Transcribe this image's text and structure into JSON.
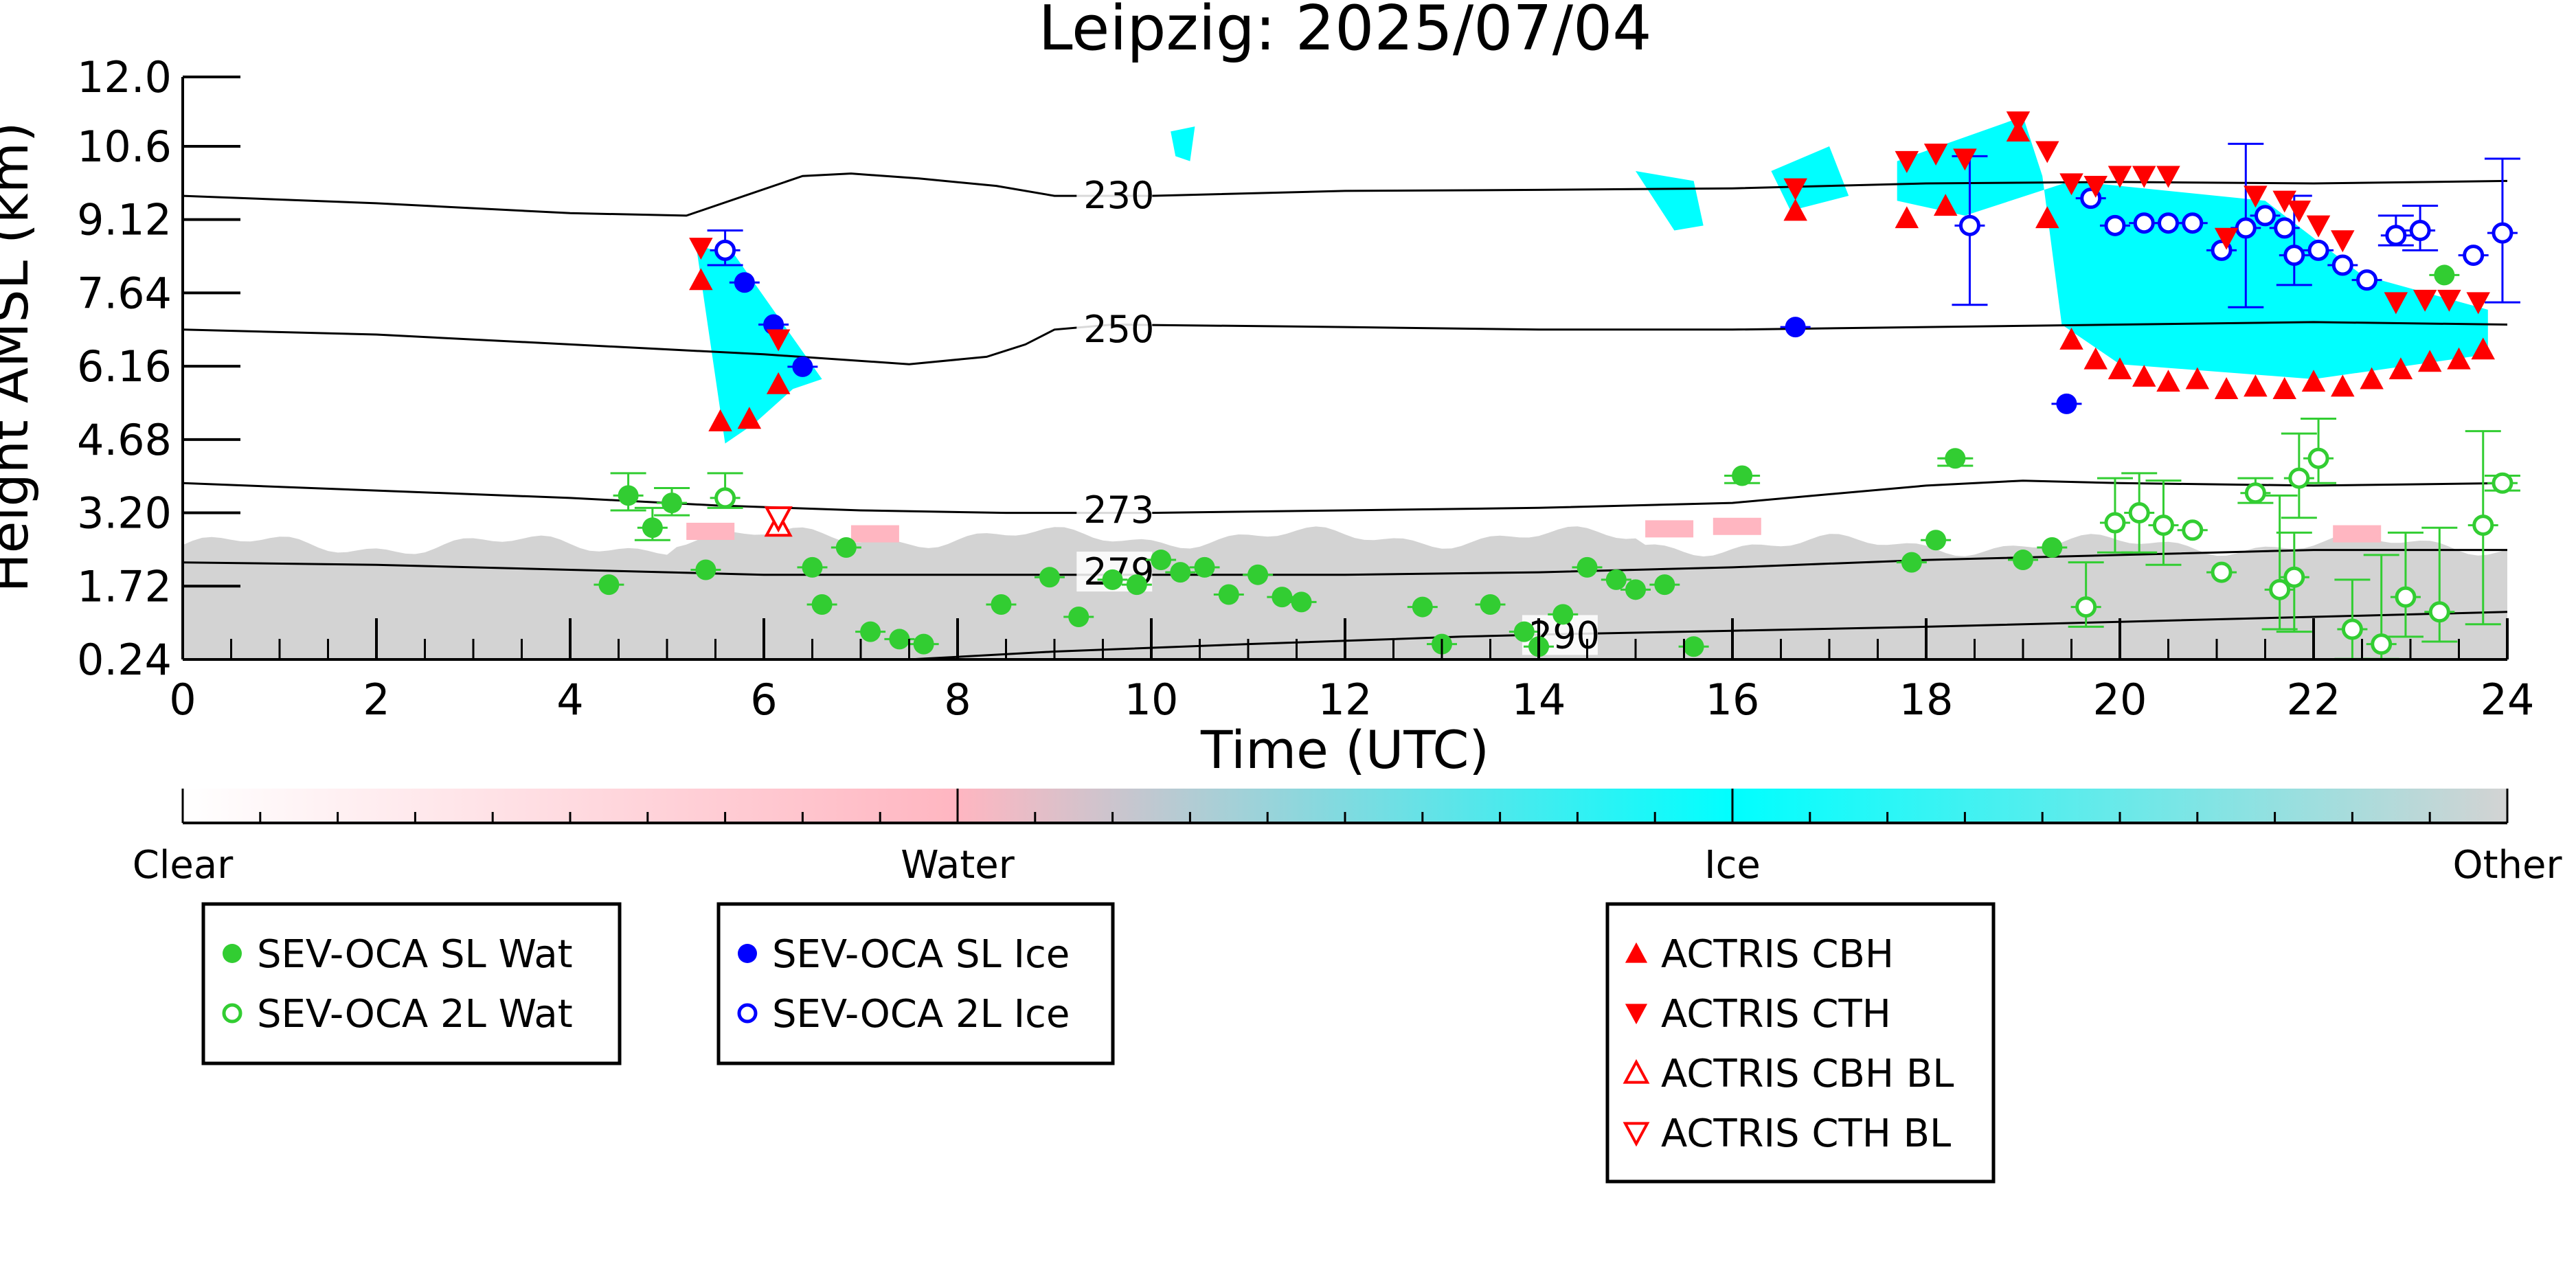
{
  "chart_data": {
    "type": "scatter",
    "title": "Leipzig: 2025/07/04",
    "xlabel": "Time (UTC)",
    "ylabel": "Height AMSL (km)",
    "xlim": [
      0,
      24
    ],
    "ylim": [
      0.24,
      12.0
    ],
    "x_ticks": [
      "0",
      "2",
      "4",
      "6",
      "8",
      "10",
      "12",
      "14",
      "16",
      "18",
      "20",
      "22",
      "24"
    ],
    "y_ticks": [
      "0.24",
      "1.72",
      "3.20",
      "4.68",
      "6.16",
      "7.64",
      "9.12",
      "10.6",
      "12.0"
    ],
    "colorbar": {
      "labels": [
        "Clear",
        "Water",
        "Ice",
        "Other"
      ],
      "colors": [
        "#ffffff",
        "#ffb6c1",
        "#00ffff",
        "#d3d3d3"
      ]
    },
    "temperature_contours": [
      {
        "label": "230",
        "label_at": [
          9.3,
          9.6
        ],
        "points": [
          [
            0,
            9.6
          ],
          [
            2,
            9.45
          ],
          [
            4,
            9.25
          ],
          [
            5.2,
            9.2
          ],
          [
            5.8,
            9.6
          ],
          [
            6.4,
            10.0
          ],
          [
            6.9,
            10.05
          ],
          [
            7.6,
            9.95
          ],
          [
            8.4,
            9.8
          ],
          [
            9.0,
            9.6
          ],
          [
            10,
            9.6
          ],
          [
            12,
            9.7
          ],
          [
            14,
            9.72
          ],
          [
            16,
            9.75
          ],
          [
            18,
            9.85
          ],
          [
            20,
            9.88
          ],
          [
            22,
            9.85
          ],
          [
            24,
            9.9
          ]
        ]
      },
      {
        "label": "250",
        "label_at": [
          9.3,
          6.9
        ],
        "points": [
          [
            0,
            6.9
          ],
          [
            2,
            6.8
          ],
          [
            4,
            6.6
          ],
          [
            6,
            6.4
          ],
          [
            7.5,
            6.2
          ],
          [
            8.3,
            6.35
          ],
          [
            8.7,
            6.6
          ],
          [
            9.0,
            6.9
          ],
          [
            9.6,
            7.0
          ],
          [
            12,
            6.95
          ],
          [
            14,
            6.9
          ],
          [
            16,
            6.9
          ],
          [
            18,
            6.95
          ],
          [
            20,
            7.0
          ],
          [
            22,
            7.05
          ],
          [
            24,
            7.0
          ]
        ]
      },
      {
        "label": "273",
        "label_at": [
          9.3,
          3.25
        ],
        "points": [
          [
            0,
            3.8
          ],
          [
            2,
            3.65
          ],
          [
            4,
            3.5
          ],
          [
            5.5,
            3.35
          ],
          [
            7.0,
            3.25
          ],
          [
            8.5,
            3.2
          ],
          [
            10,
            3.2
          ],
          [
            12,
            3.25
          ],
          [
            14,
            3.3
          ],
          [
            16,
            3.4
          ],
          [
            18,
            3.75
          ],
          [
            19,
            3.85
          ],
          [
            20,
            3.8
          ],
          [
            22,
            3.75
          ],
          [
            24,
            3.8
          ]
        ]
      },
      {
        "label": "279",
        "label_at": [
          9.3,
          2.0
        ],
        "points": [
          [
            0,
            2.2
          ],
          [
            2,
            2.15
          ],
          [
            4,
            2.05
          ],
          [
            6,
            1.95
          ],
          [
            8,
            1.95
          ],
          [
            10,
            1.95
          ],
          [
            12,
            1.95
          ],
          [
            14,
            2.0
          ],
          [
            16,
            2.1
          ],
          [
            18,
            2.25
          ],
          [
            20,
            2.35
          ],
          [
            22,
            2.45
          ],
          [
            24,
            2.45
          ]
        ]
      },
      {
        "label": "290",
        "label_at": [
          13.9,
          0.72
        ],
        "points": [
          [
            7.5,
            0.24
          ],
          [
            9,
            0.4
          ],
          [
            11,
            0.55
          ],
          [
            12.5,
            0.65
          ],
          [
            13.2,
            0.7
          ],
          [
            14.2,
            0.75
          ],
          [
            16,
            0.82
          ],
          [
            18,
            0.9
          ],
          [
            20,
            1.0
          ],
          [
            22,
            1.1
          ],
          [
            24,
            1.2
          ]
        ]
      }
    ],
    "series": [
      {
        "name": "SEV-OCA SL Wat",
        "color": "#32cd32",
        "marker": "circle-filled",
        "points": [
          [
            4.4,
            1.75
          ],
          [
            4.6,
            3.55
          ],
          [
            4.85,
            2.9
          ],
          [
            5.05,
            3.4
          ],
          [
            5.4,
            2.05
          ],
          [
            6.5,
            2.1
          ],
          [
            6.6,
            1.35
          ],
          [
            6.85,
            2.5
          ],
          [
            7.1,
            0.8
          ],
          [
            7.4,
            0.65
          ],
          [
            7.65,
            0.55
          ],
          [
            8.45,
            1.35
          ],
          [
            8.95,
            1.9
          ],
          [
            9.25,
            1.1
          ],
          [
            9.6,
            1.85
          ],
          [
            9.85,
            1.75
          ],
          [
            10.1,
            2.25
          ],
          [
            10.3,
            2.0
          ],
          [
            10.55,
            2.1
          ],
          [
            10.8,
            1.55
          ],
          [
            11.1,
            1.95
          ],
          [
            11.35,
            1.5
          ],
          [
            11.55,
            1.4
          ],
          [
            12.8,
            1.3
          ],
          [
            13.0,
            0.55
          ],
          [
            13.5,
            1.35
          ],
          [
            13.85,
            0.8
          ],
          [
            14.0,
            0.5
          ],
          [
            14.25,
            1.15
          ],
          [
            14.5,
            2.1
          ],
          [
            14.8,
            1.85
          ],
          [
            15.0,
            1.65
          ],
          [
            15.3,
            1.75
          ],
          [
            15.6,
            0.5
          ],
          [
            16.1,
            3.95
          ],
          [
            17.85,
            2.2
          ],
          [
            18.1,
            2.65
          ],
          [
            18.3,
            4.3
          ],
          [
            19.0,
            2.25
          ],
          [
            19.3,
            2.5
          ],
          [
            23.35,
            8.0
          ]
        ]
      },
      {
        "name": "SEV-OCA 2L Wat",
        "color": "#32cd32",
        "marker": "circle-open",
        "points": [
          [
            5.6,
            3.5
          ],
          [
            19.65,
            1.3
          ],
          [
            19.95,
            3.0
          ],
          [
            20.2,
            3.2
          ],
          [
            20.45,
            2.95
          ],
          [
            20.75,
            2.85
          ],
          [
            21.05,
            2.0
          ],
          [
            21.4,
            3.6
          ],
          [
            21.65,
            1.65
          ],
          [
            21.8,
            1.9
          ],
          [
            21.85,
            3.9
          ],
          [
            22.05,
            4.3
          ],
          [
            22.4,
            0.85
          ],
          [
            22.7,
            0.55
          ],
          [
            22.95,
            1.5
          ],
          [
            23.3,
            1.2
          ],
          [
            23.75,
            2.95
          ],
          [
            23.95,
            3.8
          ]
        ]
      },
      {
        "name": "SEV-OCA SL Ice",
        "color": "#0000ff",
        "marker": "circle-filled",
        "points": [
          [
            5.8,
            7.85
          ],
          [
            6.1,
            7.0
          ],
          [
            6.4,
            6.15
          ],
          [
            16.65,
            6.95
          ],
          [
            19.45,
            5.4
          ]
        ]
      },
      {
        "name": "SEV-OCA 2L Ice",
        "color": "#0000ff",
        "marker": "circle-open",
        "points": [
          [
            5.6,
            8.5
          ],
          [
            18.45,
            9.0
          ],
          [
            19.7,
            9.55
          ],
          [
            19.95,
            9.0
          ],
          [
            20.25,
            9.05
          ],
          [
            20.5,
            9.05
          ],
          [
            20.75,
            9.05
          ],
          [
            21.05,
            8.5
          ],
          [
            21.3,
            8.95
          ],
          [
            21.5,
            9.2
          ],
          [
            21.7,
            8.95
          ],
          [
            21.8,
            8.4
          ],
          [
            22.05,
            8.5
          ],
          [
            22.3,
            8.2
          ],
          [
            22.55,
            7.9
          ],
          [
            22.85,
            8.8
          ],
          [
            23.1,
            8.9
          ],
          [
            23.65,
            8.4
          ],
          [
            23.95,
            8.85
          ]
        ]
      },
      {
        "name": "ACTRIS CBH",
        "color": "#ff0000",
        "marker": "triangle-up-filled",
        "points": [
          [
            5.35,
            7.9
          ],
          [
            5.55,
            5.05
          ],
          [
            5.85,
            5.1
          ],
          [
            6.15,
            5.8
          ],
          [
            16.65,
            9.3
          ],
          [
            17.8,
            9.15
          ],
          [
            18.2,
            9.4
          ],
          [
            18.95,
            10.9
          ],
          [
            19.25,
            9.15
          ],
          [
            19.5,
            6.7
          ],
          [
            19.75,
            6.3
          ],
          [
            20.0,
            6.1
          ],
          [
            20.25,
            5.95
          ],
          [
            20.5,
            5.85
          ],
          [
            20.8,
            5.9
          ],
          [
            21.1,
            5.7
          ],
          [
            21.4,
            5.75
          ],
          [
            21.7,
            5.7
          ],
          [
            22.0,
            5.85
          ],
          [
            22.3,
            5.75
          ],
          [
            22.6,
            5.9
          ],
          [
            22.9,
            6.1
          ],
          [
            23.2,
            6.25
          ],
          [
            23.5,
            6.3
          ],
          [
            23.75,
            6.5
          ]
        ]
      },
      {
        "name": "ACTRIS CTH",
        "color": "#ff0000",
        "marker": "triangle-down-filled",
        "points": [
          [
            5.35,
            8.55
          ],
          [
            6.15,
            6.7
          ],
          [
            16.65,
            9.75
          ],
          [
            17.8,
            10.3
          ],
          [
            18.1,
            10.45
          ],
          [
            18.4,
            10.35
          ],
          [
            18.95,
            11.1
          ],
          [
            19.25,
            10.5
          ],
          [
            19.5,
            9.85
          ],
          [
            19.75,
            9.8
          ],
          [
            20.0,
            10.0
          ],
          [
            20.25,
            10.0
          ],
          [
            20.5,
            10.0
          ],
          [
            21.1,
            8.75
          ],
          [
            21.4,
            9.6
          ],
          [
            21.7,
            9.5
          ],
          [
            21.85,
            9.3
          ],
          [
            22.05,
            9.0
          ],
          [
            22.3,
            8.7
          ],
          [
            22.85,
            7.45
          ],
          [
            23.15,
            7.5
          ],
          [
            23.4,
            7.5
          ],
          [
            23.7,
            7.45
          ]
        ]
      },
      {
        "name": "ACTRIS CBH BL",
        "color": "#ff0000",
        "marker": "triangle-up-open",
        "points": [
          [
            6.15,
            2.95
          ]
        ]
      },
      {
        "name": "ACTRIS CTH BL",
        "color": "#ff0000",
        "marker": "triangle-down-open",
        "points": [
          [
            6.15,
            3.1
          ]
        ]
      }
    ],
    "error_bars": [
      {
        "series": "SEV-OCA SL Wat",
        "color": "#32cd32",
        "items": [
          [
            4.6,
            3.55,
            0.3,
            0.45
          ],
          [
            4.85,
            2.9,
            0.25,
            0.4
          ],
          [
            5.05,
            3.4,
            0.25,
            0.3
          ],
          [
            16.1,
            3.95,
            0.15,
            0.0
          ],
          [
            18.3,
            4.3,
            0.15,
            0.0
          ]
        ]
      },
      {
        "series": "SEV-OCA 2L Wat",
        "color": "#32cd32",
        "items": [
          [
            5.6,
            3.5,
            0.2,
            0.5
          ],
          [
            19.65,
            1.3,
            0.4,
            0.9
          ],
          [
            19.95,
            3.0,
            0.6,
            0.9
          ],
          [
            20.2,
            3.2,
            0.8,
            0.8
          ],
          [
            20.45,
            2.95,
            0.8,
            0.9
          ],
          [
            21.4,
            3.6,
            0.2,
            0.3
          ],
          [
            21.65,
            1.65,
            0.8,
            1.9
          ],
          [
            21.8,
            1.9,
            1.1,
            0.9
          ],
          [
            21.85,
            3.9,
            0.8,
            0.9
          ],
          [
            22.05,
            4.3,
            0.5,
            0.8
          ],
          [
            22.4,
            0.85,
            0.6,
            1.0
          ],
          [
            22.7,
            0.55,
            0.3,
            1.8
          ],
          [
            22.95,
            1.5,
            0.8,
            1.3
          ],
          [
            23.3,
            1.2,
            0.6,
            1.7
          ],
          [
            23.75,
            2.95,
            2.0,
            1.9
          ],
          [
            23.95,
            3.8,
            0.15,
            0.15
          ]
        ]
      },
      {
        "series": "SEV-OCA 2L Ice",
        "color": "#0000ff",
        "items": [
          [
            5.6,
            8.5,
            0.3,
            0.4
          ],
          [
            18.45,
            9.0,
            1.6,
            1.4
          ],
          [
            21.3,
            8.95,
            1.6,
            1.7
          ],
          [
            21.8,
            8.4,
            0.6,
            1.2
          ],
          [
            22.85,
            8.8,
            0.2,
            0.4
          ],
          [
            23.1,
            8.9,
            0.4,
            0.5
          ],
          [
            23.95,
            8.85,
            1.4,
            1.5
          ]
        ]
      }
    ],
    "legend_groups": [
      {
        "position": "bottom-left",
        "entries": [
          "SEV-OCA SL Wat",
          "SEV-OCA 2L Wat"
        ]
      },
      {
        "position": "bottom-center-left",
        "entries": [
          "SEV-OCA SL Ice",
          "SEV-OCA 2L Ice"
        ]
      },
      {
        "position": "bottom-center-right",
        "entries": [
          "ACTRIS CBH",
          "ACTRIS CTH",
          "ACTRIS CBH BL",
          "ACTRIS CTH BL"
        ]
      }
    ]
  }
}
